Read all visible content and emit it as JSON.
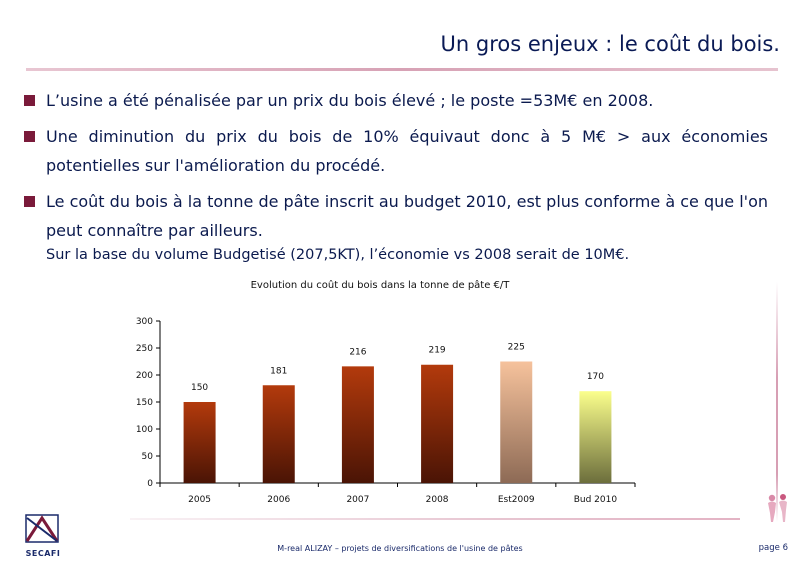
{
  "slide": {
    "title": "Un gros enjeux : le coût du bois.",
    "bullets": [
      "L’usine a été pénalisée par un prix du bois élevé ; le poste =53M€ en 2008.",
      "Une diminution du prix du bois de 10% équivaut donc à 5 M€ > aux économies potentielles sur l'amélioration du procédé.",
      "Le coût du bois à la tonne de pâte inscrit au budget 2010, est plus conforme à ce que l'on peut connaître par ailleurs."
    ],
    "note": "Sur la base du volume Budgetisé (207,5KT), l’économie vs 2008 serait de 10M€."
  },
  "chart_data": {
    "type": "bar",
    "title": "Evolution du coût du bois dans la tonne de pâte €/T",
    "categories": [
      "2005",
      "2006",
      "2007",
      "2008",
      "Est2009",
      "Bud 2010"
    ],
    "values": [
      150,
      181,
      216,
      219,
      225,
      170
    ],
    "data_labels": [
      "150",
      "181",
      "216",
      "219",
      "225",
      "170"
    ],
    "ylim": [
      0,
      300
    ],
    "yticks": [
      "0",
      "50",
      "100",
      "150",
      "200",
      "250",
      "300"
    ],
    "xlabel": "",
    "ylabel": "",
    "grid": false,
    "legend": "none",
    "bar_colors": [
      [
        "#b33a0c",
        "#4a1405"
      ],
      [
        "#b33a0c",
        "#4a1405"
      ],
      [
        "#b33a0c",
        "#4a1405"
      ],
      [
        "#b33a0c",
        "#4a1405"
      ],
      [
        "#f6c29c",
        "#8d6a55"
      ],
      [
        "#fbff8c",
        "#6c6e3c"
      ]
    ]
  },
  "footer": {
    "logo_text": "SECAFI",
    "center_text": "M-real ALIZAY – projets de diversifications de l'usine de pâtes",
    "page": "page 6"
  },
  "colors": {
    "title": "#0a1a55",
    "bullet_square": "#7a1a3a",
    "accent_rule": "#d7a2b5"
  }
}
